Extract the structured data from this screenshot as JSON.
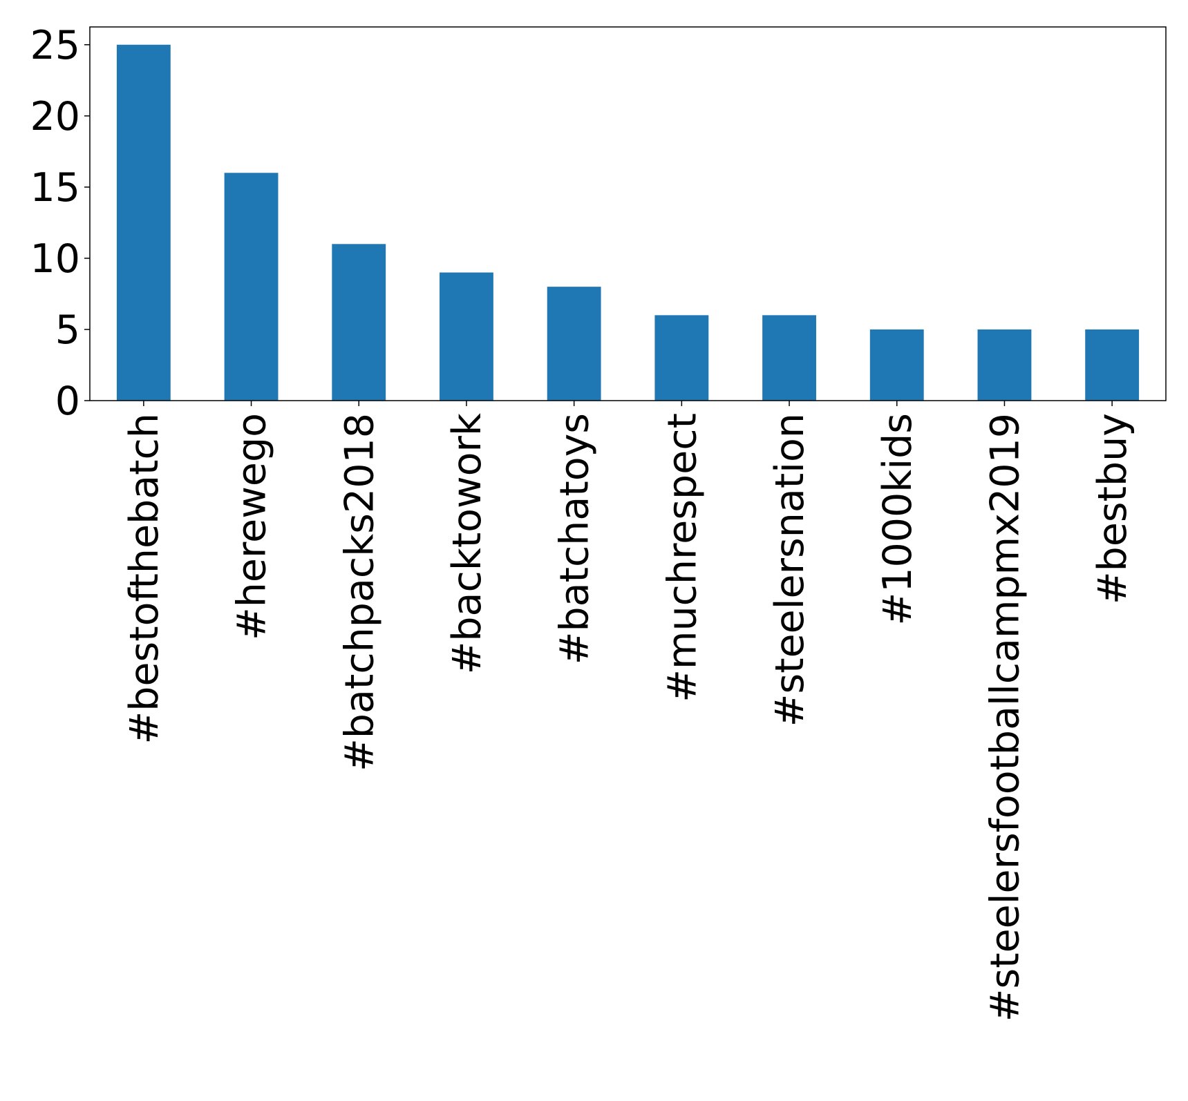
{
  "chart_data": {
    "type": "bar",
    "title": "",
    "xlabel": "",
    "ylabel": "",
    "categories": [
      "#bestofthebatch",
      "#herewego",
      "#batchpacks2018",
      "#backtowork",
      "#batchatoys",
      "#muchrespect",
      "#steelersnation",
      "#1000kids",
      "#steelersfootballcampmx2019",
      "#bestbuy"
    ],
    "values": [
      25,
      16,
      11,
      9,
      8,
      6,
      6,
      5,
      5,
      5
    ],
    "ylim": [
      0,
      26.25
    ],
    "yticks": [
      0,
      5,
      10,
      15,
      20,
      25
    ],
    "ytick_labels": [
      "0",
      "5",
      "10",
      "15",
      "20",
      "25"
    ],
    "grid": false,
    "legend": "none",
    "colors": {
      "bar": "#1f77b4",
      "axis": "#000000",
      "background": "#ffffff"
    }
  }
}
